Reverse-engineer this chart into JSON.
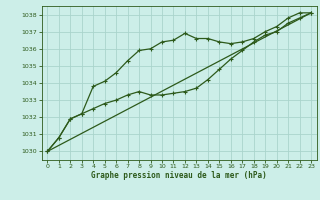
{
  "title": "Graphe pression niveau de la mer (hPa)",
  "bg_color": "#cceee8",
  "grid_color": "#aad4cc",
  "line_color": "#2d5a1b",
  "xlim": [
    -0.5,
    23.5
  ],
  "ylim": [
    1029.5,
    1038.5
  ],
  "yticks": [
    1030,
    1031,
    1032,
    1033,
    1034,
    1035,
    1036,
    1037,
    1038
  ],
  "xticks": [
    0,
    1,
    2,
    3,
    4,
    5,
    6,
    7,
    8,
    9,
    10,
    11,
    12,
    13,
    14,
    15,
    16,
    17,
    18,
    19,
    20,
    21,
    22,
    23
  ],
  "series1_x": [
    0,
    1,
    2,
    3,
    4,
    5,
    6,
    7,
    8,
    9,
    10,
    11,
    12,
    13,
    14,
    15,
    16,
    17,
    18,
    19,
    20,
    21,
    22,
    23
  ],
  "series1_y": [
    1030.0,
    1030.8,
    1031.9,
    1032.2,
    1033.8,
    1034.1,
    1034.6,
    1035.3,
    1035.9,
    1036.0,
    1036.4,
    1036.5,
    1036.9,
    1036.6,
    1036.6,
    1036.4,
    1036.3,
    1036.4,
    1036.6,
    1037.0,
    1037.3,
    1037.8,
    1038.1,
    1038.1
  ],
  "series2_x": [
    0,
    1,
    2,
    3,
    4,
    5,
    6,
    7,
    8,
    9,
    10,
    11,
    12,
    13,
    14,
    15,
    16,
    17,
    18,
    19,
    20,
    21,
    22,
    23
  ],
  "series2_y": [
    1030.0,
    1030.8,
    1031.9,
    1032.2,
    1032.5,
    1032.8,
    1033.0,
    1033.3,
    1033.5,
    1033.3,
    1033.3,
    1033.4,
    1033.5,
    1033.7,
    1034.2,
    1034.8,
    1035.4,
    1035.9,
    1036.4,
    1036.8,
    1037.0,
    1037.5,
    1037.8,
    1038.1
  ],
  "series3_x": [
    0,
    23
  ],
  "series3_y": [
    1030.0,
    1038.1
  ]
}
